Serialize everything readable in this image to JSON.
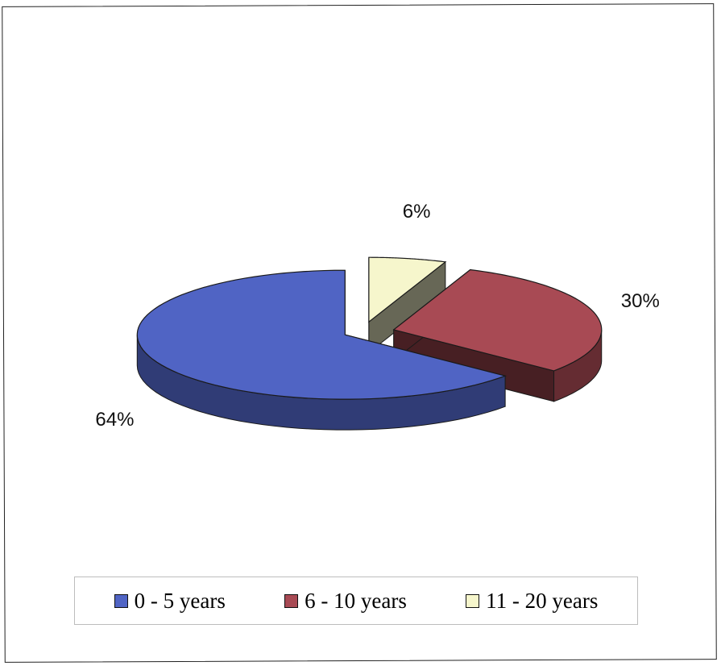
{
  "chart_data": {
    "type": "pie",
    "style": "3d-exploded",
    "categories": [
      "0 - 5 years",
      "6 - 10 years",
      "11 - 20 years"
    ],
    "values": [
      64,
      30,
      6
    ],
    "unit": "%",
    "data_labels": [
      "64%",
      "30%",
      "6%"
    ],
    "colors": [
      "#5064c4",
      "#a84a54",
      "#f6f6cc"
    ],
    "legend_position": "bottom",
    "title": ""
  }
}
